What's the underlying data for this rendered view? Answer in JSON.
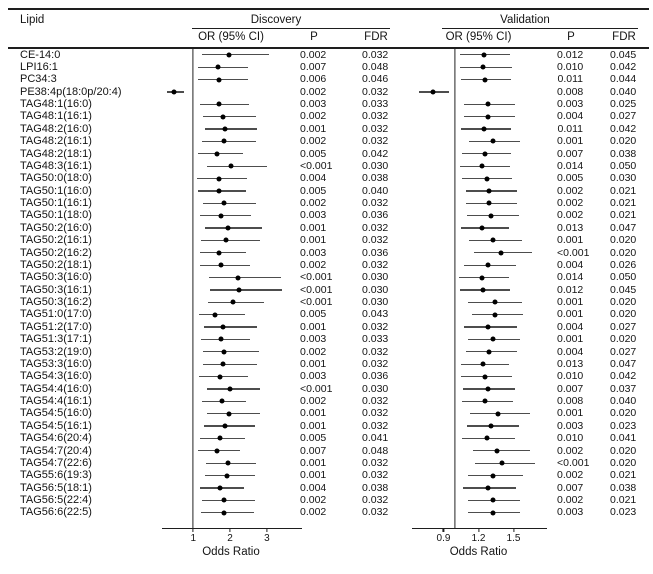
{
  "figure": {
    "headers": {
      "lipid": "Lipid",
      "or_ci": "OR (95% CI)",
      "p": "P",
      "fdr": "FDR"
    },
    "groups": {
      "discovery": "Discovery",
      "validation": "Validation"
    }
  },
  "chart_data": {
    "type": "forest",
    "panels": [
      {
        "name": "Discovery",
        "axis": {
          "min": 0.15,
          "max": 3.9,
          "ticks": [
            1,
            2,
            3
          ],
          "ref": 1,
          "label": "Odds Ratio"
        }
      },
      {
        "name": "Validation",
        "axis": {
          "min": 0.63,
          "max": 1.77,
          "ticks": [
            0.9,
            1.2,
            1.5
          ],
          "ref": 1,
          "label": "Odds Ratio"
        }
      }
    ],
    "rows": [
      {
        "lipid": "CE-14:0",
        "discovery": {
          "or": 1.97,
          "ci": [
            1.25,
            3.05
          ],
          "p": "0.002",
          "fdr": "0.032"
        },
        "validation": {
          "or": 1.25,
          "ci": [
            1.04,
            1.47
          ],
          "p": "0.012",
          "fdr": "0.045"
        }
      },
      {
        "lipid": "LPI16:1",
        "discovery": {
          "or": 1.67,
          "ci": [
            1.12,
            2.5
          ],
          "p": "0.007",
          "fdr": "0.048"
        },
        "validation": {
          "or": 1.24,
          "ci": [
            1.04,
            1.49
          ],
          "p": "0.010",
          "fdr": "0.042"
        }
      },
      {
        "lipid": "PC34:3",
        "discovery": {
          "or": 1.69,
          "ci": [
            1.14,
            2.49
          ],
          "p": "0.006",
          "fdr": "0.046"
        },
        "validation": {
          "or": 1.26,
          "ci": [
            1.05,
            1.48
          ],
          "p": "0.011",
          "fdr": "0.044"
        }
      },
      {
        "lipid": "PE38:4p(18:0p/20:4)",
        "discovery": {
          "or": 0.47,
          "ci": [
            0.29,
            0.75
          ],
          "p": "0.002",
          "fdr": "0.032"
        },
        "validation": {
          "or": 0.81,
          "ci": [
            0.69,
            0.95
          ],
          "p": "0.008",
          "fdr": "0.040"
        }
      },
      {
        "lipid": "TAG48:1(16:0)",
        "discovery": {
          "or": 1.7,
          "ci": [
            1.18,
            2.52
          ],
          "p": "0.003",
          "fdr": "0.033"
        },
        "validation": {
          "or": 1.28,
          "ci": [
            1.08,
            1.51
          ],
          "p": "0.003",
          "fdr": "0.025"
        }
      },
      {
        "lipid": "TAG48:1(16:1)",
        "discovery": {
          "or": 1.81,
          "ci": [
            1.27,
            2.7
          ],
          "p": "0.002",
          "fdr": "0.032"
        },
        "validation": {
          "or": 1.28,
          "ci": [
            1.08,
            1.51
          ],
          "p": "0.004",
          "fdr": "0.027"
        }
      },
      {
        "lipid": "TAG48:2(16:0)",
        "discovery": {
          "or": 1.87,
          "ci": [
            1.32,
            2.72
          ],
          "p": "0.001",
          "fdr": "0.032"
        },
        "validation": {
          "or": 1.25,
          "ci": [
            1.05,
            1.48
          ],
          "p": "0.011",
          "fdr": "0.042"
        }
      },
      {
        "lipid": "TAG48:2(16:1)",
        "discovery": {
          "or": 1.83,
          "ci": [
            1.23,
            2.7
          ],
          "p": "0.002",
          "fdr": "0.032"
        },
        "validation": {
          "or": 1.32,
          "ci": [
            1.12,
            1.56
          ],
          "p": "0.001",
          "fdr": "0.020"
        }
      },
      {
        "lipid": "TAG48:2(18:1)",
        "discovery": {
          "or": 1.65,
          "ci": [
            1.14,
            2.36
          ],
          "p": "0.005",
          "fdr": "0.042"
        },
        "validation": {
          "or": 1.26,
          "ci": [
            1.06,
            1.48
          ],
          "p": "0.007",
          "fdr": "0.038"
        }
      },
      {
        "lipid": "TAG48:3(16:1)",
        "discovery": {
          "or": 2.03,
          "ci": [
            1.37,
            2.99
          ],
          "p": "<0.001",
          "fdr": "0.030"
        },
        "validation": {
          "or": 1.23,
          "ci": [
            1.04,
            1.47
          ],
          "p": "0.014",
          "fdr": "0.050"
        }
      },
      {
        "lipid": "TAG50:0(18:0)",
        "discovery": {
          "or": 1.69,
          "ci": [
            1.11,
            2.47
          ],
          "p": "0.004",
          "fdr": "0.038"
        },
        "validation": {
          "or": 1.27,
          "ci": [
            1.06,
            1.49
          ],
          "p": "0.005",
          "fdr": "0.030"
        }
      },
      {
        "lipid": "TAG50:1(16:0)",
        "discovery": {
          "or": 1.7,
          "ci": [
            1.14,
            2.43
          ],
          "p": "0.005",
          "fdr": "0.040"
        },
        "validation": {
          "or": 1.29,
          "ci": [
            1.09,
            1.53
          ],
          "p": "0.002",
          "fdr": "0.021"
        }
      },
      {
        "lipid": "TAG50:1(16:1)",
        "discovery": {
          "or": 1.83,
          "ci": [
            1.27,
            2.71
          ],
          "p": "0.002",
          "fdr": "0.032"
        },
        "validation": {
          "or": 1.29,
          "ci": [
            1.09,
            1.53
          ],
          "p": "0.002",
          "fdr": "0.021"
        }
      },
      {
        "lipid": "TAG50:1(18:0)",
        "discovery": {
          "or": 1.75,
          "ci": [
            1.17,
            2.58
          ],
          "p": "0.003",
          "fdr": "0.036"
        },
        "validation": {
          "or": 1.31,
          "ci": [
            1.1,
            1.55
          ],
          "p": "0.002",
          "fdr": "0.021"
        }
      },
      {
        "lipid": "TAG50:2(16:0)",
        "discovery": {
          "or": 1.94,
          "ci": [
            1.32,
            2.87
          ],
          "p": "0.001",
          "fdr": "0.032"
        },
        "validation": {
          "or": 1.23,
          "ci": [
            1.05,
            1.46
          ],
          "p": "0.013",
          "fdr": "0.047"
        }
      },
      {
        "lipid": "TAG50:2(16:1)",
        "discovery": {
          "or": 1.9,
          "ci": [
            1.21,
            2.81
          ],
          "p": "0.001",
          "fdr": "0.032"
        },
        "validation": {
          "or": 1.32,
          "ci": [
            1.12,
            1.57
          ],
          "p": "0.001",
          "fdr": "0.020"
        }
      },
      {
        "lipid": "TAG50:2(16:2)",
        "discovery": {
          "or": 1.69,
          "ci": [
            1.17,
            2.43
          ],
          "p": "0.003",
          "fdr": "0.036"
        },
        "validation": {
          "or": 1.39,
          "ci": [
            1.16,
            1.66
          ],
          "p": "<0.001",
          "fdr": "0.020"
        }
      },
      {
        "lipid": "TAG50:2(18:1)",
        "discovery": {
          "or": 1.76,
          "ci": [
            1.18,
            2.55
          ],
          "p": "0.002",
          "fdr": "0.032"
        },
        "validation": {
          "or": 1.28,
          "ci": [
            1.08,
            1.52
          ],
          "p": "0.004",
          "fdr": "0.026"
        }
      },
      {
        "lipid": "TAG50:3(16:0)",
        "discovery": {
          "or": 2.21,
          "ci": [
            1.44,
            3.39
          ],
          "p": "<0.001",
          "fdr": "0.030"
        },
        "validation": {
          "or": 1.23,
          "ci": [
            1.03,
            1.46
          ],
          "p": "0.014",
          "fdr": "0.050"
        }
      },
      {
        "lipid": "TAG50:3(16:1)",
        "discovery": {
          "or": 2.23,
          "ci": [
            1.45,
            3.41
          ],
          "p": "<0.001",
          "fdr": "0.030"
        },
        "validation": {
          "or": 1.24,
          "ci": [
            1.04,
            1.47
          ],
          "p": "0.012",
          "fdr": "0.045"
        }
      },
      {
        "lipid": "TAG50:3(16:2)",
        "discovery": {
          "or": 2.08,
          "ci": [
            1.41,
            2.91
          ],
          "p": "<0.001",
          "fdr": "0.030"
        },
        "validation": {
          "or": 1.34,
          "ci": [
            1.11,
            1.57
          ],
          "p": "0.001",
          "fdr": "0.020"
        }
      },
      {
        "lipid": "TAG51:0(17:0)",
        "discovery": {
          "or": 1.6,
          "ci": [
            1.15,
            2.4
          ],
          "p": "0.005",
          "fdr": "0.043"
        },
        "validation": {
          "or": 1.34,
          "ci": [
            1.14,
            1.58
          ],
          "p": "0.001",
          "fdr": "0.020"
        }
      },
      {
        "lipid": "TAG51:2(17:0)",
        "discovery": {
          "or": 1.81,
          "ci": [
            1.29,
            2.73
          ],
          "p": "0.001",
          "fdr": "0.032"
        },
        "validation": {
          "or": 1.28,
          "ci": [
            1.08,
            1.53
          ],
          "p": "0.004",
          "fdr": "0.027"
        }
      },
      {
        "lipid": "TAG51:3(17:1)",
        "discovery": {
          "or": 1.76,
          "ci": [
            1.22,
            2.53
          ],
          "p": "0.003",
          "fdr": "0.033"
        },
        "validation": {
          "or": 1.32,
          "ci": [
            1.11,
            1.56
          ],
          "p": "0.001",
          "fdr": "0.020"
        }
      },
      {
        "lipid": "TAG53:2(19:0)",
        "discovery": {
          "or": 1.83,
          "ci": [
            1.27,
            2.78
          ],
          "p": "0.002",
          "fdr": "0.032"
        },
        "validation": {
          "or": 1.29,
          "ci": [
            1.09,
            1.53
          ],
          "p": "0.004",
          "fdr": "0.027"
        }
      },
      {
        "lipid": "TAG53:3(16:0)",
        "discovery": {
          "or": 1.81,
          "ci": [
            1.27,
            2.73
          ],
          "p": "0.001",
          "fdr": "0.032"
        },
        "validation": {
          "or": 1.24,
          "ci": [
            1.05,
            1.46
          ],
          "p": "0.013",
          "fdr": "0.047"
        }
      },
      {
        "lipid": "TAG54:3(16:0)",
        "discovery": {
          "or": 1.72,
          "ci": [
            1.15,
            2.48
          ],
          "p": "0.003",
          "fdr": "0.036"
        },
        "validation": {
          "or": 1.26,
          "ci": [
            1.05,
            1.49
          ],
          "p": "0.010",
          "fdr": "0.042"
        }
      },
      {
        "lipid": "TAG54:4(16:0)",
        "discovery": {
          "or": 2.01,
          "ci": [
            1.38,
            2.81
          ],
          "p": "<0.001",
          "fdr": "0.030"
        },
        "validation": {
          "or": 1.28,
          "ci": [
            1.07,
            1.51
          ],
          "p": "0.007",
          "fdr": "0.037"
        }
      },
      {
        "lipid": "TAG54:4(16:1)",
        "discovery": {
          "or": 1.77,
          "ci": [
            1.24,
            2.44
          ],
          "p": "0.002",
          "fdr": "0.032"
        },
        "validation": {
          "or": 1.26,
          "ci": [
            1.06,
            1.5
          ],
          "p": "0.008",
          "fdr": "0.040"
        }
      },
      {
        "lipid": "TAG54:5(16:0)",
        "discovery": {
          "or": 1.98,
          "ci": [
            1.36,
            2.81
          ],
          "p": "0.001",
          "fdr": "0.032"
        },
        "validation": {
          "or": 1.37,
          "ci": [
            1.13,
            1.64
          ],
          "p": "0.001",
          "fdr": "0.020"
        }
      },
      {
        "lipid": "TAG54:5(16:1)",
        "discovery": {
          "or": 1.85,
          "ci": [
            1.29,
            2.67
          ],
          "p": "0.001",
          "fdr": "0.032"
        },
        "validation": {
          "or": 1.31,
          "ci": [
            1.1,
            1.55
          ],
          "p": "0.003",
          "fdr": "0.023"
        }
      },
      {
        "lipid": "TAG54:6(20:4)",
        "discovery": {
          "or": 1.72,
          "ci": [
            1.18,
            2.41
          ],
          "p": "0.005",
          "fdr": "0.041"
        },
        "validation": {
          "or": 1.27,
          "ci": [
            1.06,
            1.51
          ],
          "p": "0.010",
          "fdr": "0.041"
        }
      },
      {
        "lipid": "TAG54:7(20:4)",
        "discovery": {
          "or": 1.65,
          "ci": [
            1.12,
            2.28
          ],
          "p": "0.007",
          "fdr": "0.048"
        },
        "validation": {
          "or": 1.36,
          "ci": [
            1.15,
            1.64
          ],
          "p": "0.002",
          "fdr": "0.020"
        }
      },
      {
        "lipid": "TAG54:7(22:6)",
        "discovery": {
          "or": 1.95,
          "ci": [
            1.35,
            2.71
          ],
          "p": "0.001",
          "fdr": "0.032"
        },
        "validation": {
          "or": 1.4,
          "ci": [
            1.17,
            1.68
          ],
          "p": "<0.001",
          "fdr": "0.020"
        }
      },
      {
        "lipid": "TAG55:6(19:3)",
        "discovery": {
          "or": 1.91,
          "ci": [
            1.31,
            2.69
          ],
          "p": "0.001",
          "fdr": "0.032"
        },
        "validation": {
          "or": 1.32,
          "ci": [
            1.11,
            1.58
          ],
          "p": "0.002",
          "fdr": "0.021"
        }
      },
      {
        "lipid": "TAG56:5(18:1)",
        "discovery": {
          "or": 1.72,
          "ci": [
            1.18,
            2.38
          ],
          "p": "0.004",
          "fdr": "0.038"
        },
        "validation": {
          "or": 1.28,
          "ci": [
            1.07,
            1.52
          ],
          "p": "0.007",
          "fdr": "0.038"
        }
      },
      {
        "lipid": "TAG56:5(22:4)",
        "discovery": {
          "or": 1.83,
          "ci": [
            1.24,
            2.69
          ],
          "p": "0.002",
          "fdr": "0.032"
        },
        "validation": {
          "or": 1.32,
          "ci": [
            1.11,
            1.56
          ],
          "p": "0.002",
          "fdr": "0.021"
        }
      },
      {
        "lipid": "TAG56:6(22:5)",
        "discovery": {
          "or": 1.83,
          "ci": [
            1.22,
            2.64
          ],
          "p": "0.002",
          "fdr": "0.032"
        },
        "validation": {
          "or": 1.32,
          "ci": [
            1.11,
            1.56
          ],
          "p": "0.003",
          "fdr": "0.023"
        }
      }
    ]
  }
}
